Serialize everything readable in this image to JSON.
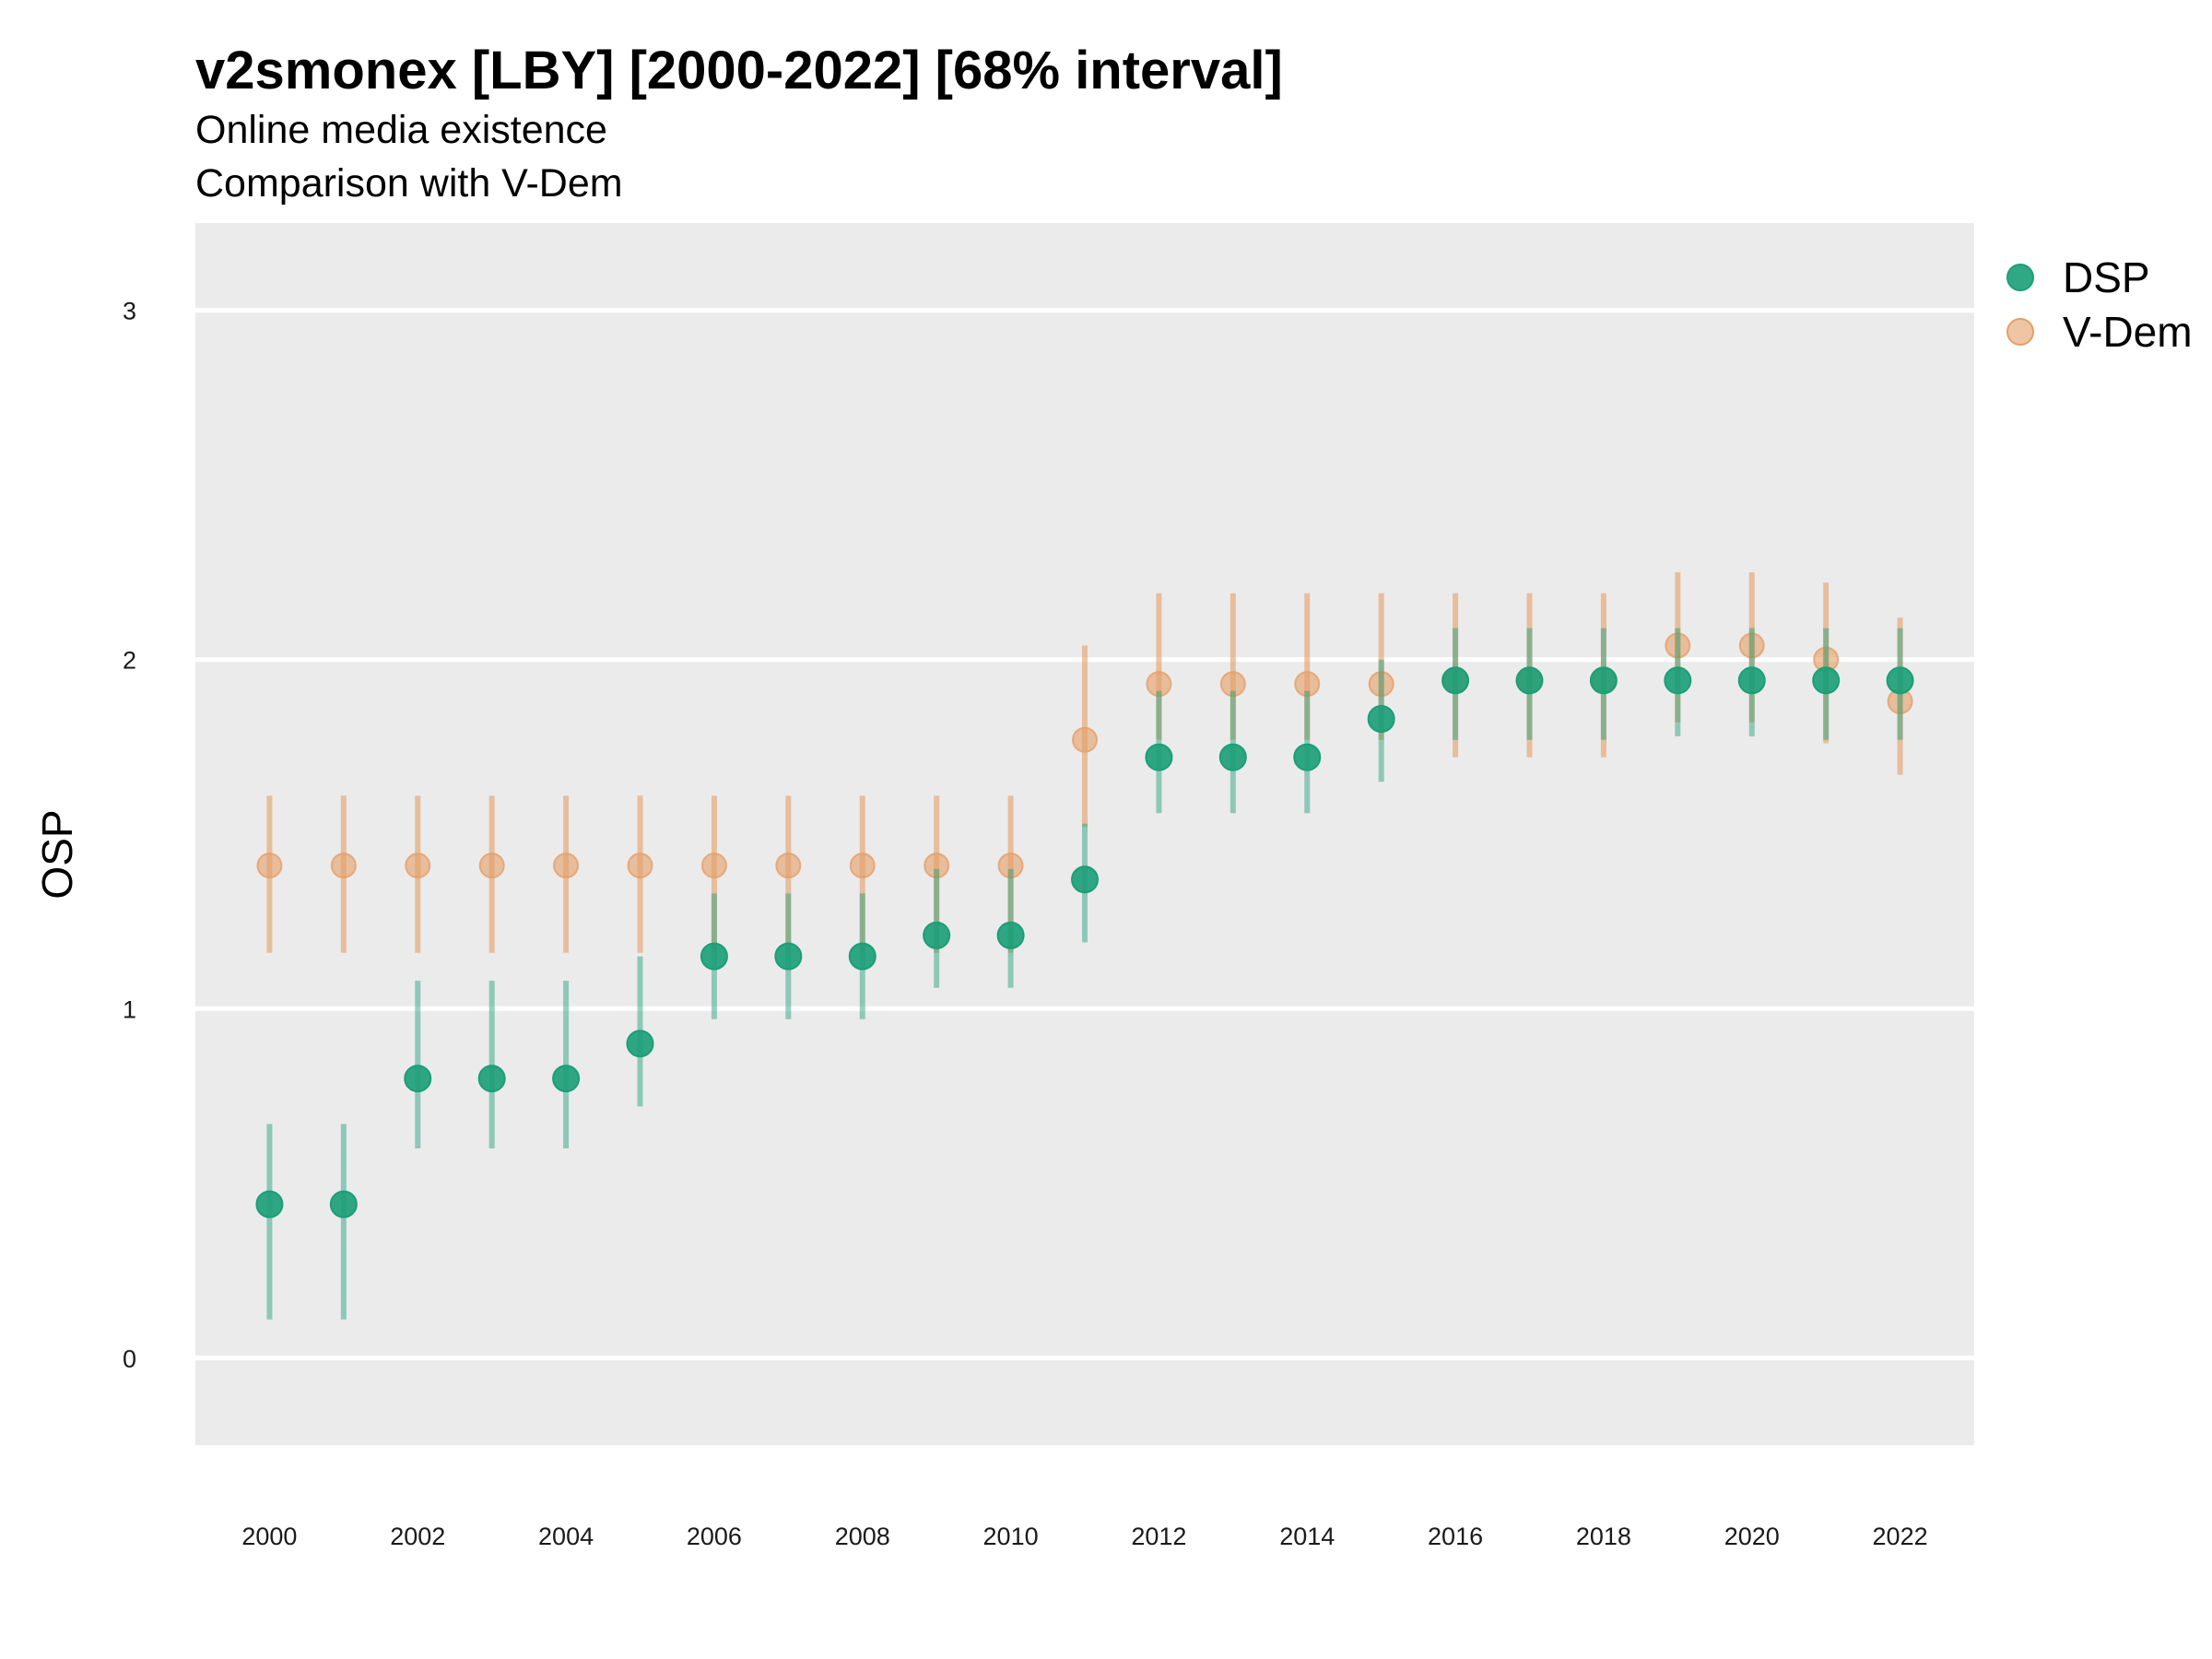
{
  "chart_data": {
    "type": "scatter",
    "title": "v2smonex [LBY] [2000-2022] [68% interval]",
    "subtitle_lines": [
      "Online media existence",
      "Comparison with V-Dem"
    ],
    "xlabel": "",
    "ylabel": "OSP",
    "xlim": [
      1999,
      2023
    ],
    "ylim": [
      -0.25,
      3.25
    ],
    "yticks": [
      0,
      1,
      2,
      3
    ],
    "xticks": [
      2000,
      2002,
      2004,
      2006,
      2008,
      2010,
      2012,
      2014,
      2016,
      2018,
      2020,
      2022
    ],
    "grid": true,
    "legend_position": "right",
    "x": [
      2000,
      2001,
      2002,
      2003,
      2004,
      2005,
      2006,
      2007,
      2008,
      2009,
      2010,
      2011,
      2012,
      2013,
      2014,
      2015,
      2016,
      2017,
      2018,
      2019,
      2020,
      2021,
      2022
    ],
    "series": [
      {
        "name": "V-Dem",
        "color": "#E59F68",
        "values": [
          1.41,
          1.41,
          1.41,
          1.41,
          1.41,
          1.41,
          1.41,
          1.41,
          1.41,
          1.41,
          1.41,
          1.77,
          1.93,
          1.93,
          1.93,
          1.93,
          1.94,
          1.94,
          1.94,
          2.04,
          2.04,
          2.0,
          1.88
        ],
        "lower": [
          1.16,
          1.16,
          1.16,
          1.16,
          1.16,
          1.16,
          1.16,
          1.16,
          1.16,
          1.16,
          1.16,
          1.52,
          1.77,
          1.77,
          1.77,
          1.77,
          1.72,
          1.72,
          1.72,
          1.82,
          1.82,
          1.76,
          1.67
        ],
        "upper": [
          1.61,
          1.61,
          1.61,
          1.61,
          1.61,
          1.61,
          1.61,
          1.61,
          1.61,
          1.61,
          1.61,
          2.04,
          2.19,
          2.19,
          2.19,
          2.19,
          2.19,
          2.19,
          2.19,
          2.25,
          2.25,
          2.22,
          2.12
        ]
      },
      {
        "name": "DSP",
        "color": "#1B9E77",
        "values": [
          0.44,
          0.44,
          0.8,
          0.8,
          0.8,
          0.9,
          1.15,
          1.15,
          1.15,
          1.21,
          1.21,
          1.37,
          1.72,
          1.72,
          1.72,
          1.83,
          1.94,
          1.94,
          1.94,
          1.94,
          1.94,
          1.94,
          1.94
        ],
        "lower": [
          0.11,
          0.11,
          0.6,
          0.6,
          0.6,
          0.72,
          0.97,
          0.97,
          0.97,
          1.06,
          1.06,
          1.19,
          1.56,
          1.56,
          1.56,
          1.65,
          1.77,
          1.77,
          1.77,
          1.78,
          1.78,
          1.77,
          1.77
        ],
        "upper": [
          0.67,
          0.67,
          1.08,
          1.08,
          1.08,
          1.15,
          1.33,
          1.33,
          1.33,
          1.4,
          1.4,
          1.53,
          1.91,
          1.91,
          1.91,
          2.0,
          2.09,
          2.09,
          2.09,
          2.09,
          2.09,
          2.09,
          2.09
        ]
      }
    ],
    "legend": [
      {
        "name": "DSP",
        "color": "#1B9E77"
      },
      {
        "name": "V-Dem",
        "color": "#E59F68"
      }
    ]
  }
}
